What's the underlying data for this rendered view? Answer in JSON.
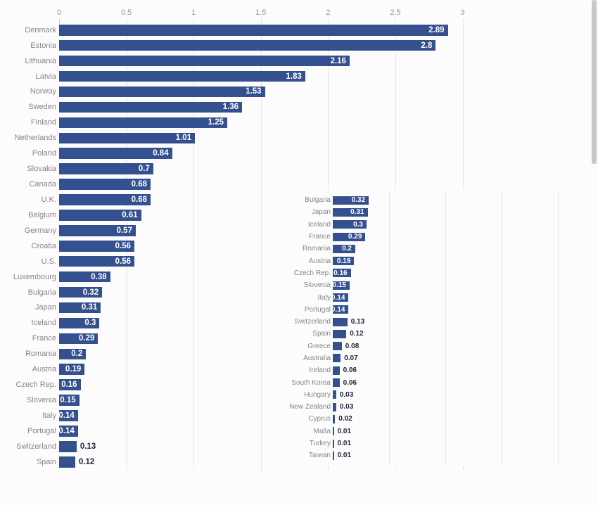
{
  "colors": {
    "background": "#fcfcfc",
    "bar": "#35508f",
    "category_label": "#85868a",
    "axis_label": "#96979b",
    "gridline": "#e4e4e6",
    "tickmark": "#c9c9cb",
    "value_inside": "#ffffff",
    "value_outside": "#23263a",
    "scrollbar": "#c7c7c9"
  },
  "scrollbar": {
    "name": "scrollbar-thumb"
  },
  "chart_data": [
    {
      "id": "main",
      "type": "bar",
      "orientation": "horizontal",
      "title": "",
      "xlabel": "",
      "ylabel": "",
      "xlim": [
        0,
        3
      ],
      "grid": true,
      "axis_position": "top",
      "tick_labels": [
        "0",
        "0.5",
        "1",
        "1.5",
        "2",
        "2.5",
        "3"
      ],
      "tick_values": [
        0,
        0.5,
        1,
        1.5,
        2,
        2.5,
        3
      ],
      "categories": [
        "Denmark",
        "Estonia",
        "Lithuania",
        "Latvia",
        "Norway",
        "Sweden",
        "Finland",
        "Netherlands",
        "Poland",
        "Slovakia",
        "Canada",
        "U.K.",
        "Belgium",
        "Germany",
        "Croatia",
        "U.S.",
        "Luxembourg",
        "Bulgaria",
        "Japan",
        "Iceland",
        "France",
        "Romania",
        "Austria",
        "Czech Rep.",
        "Slovenia",
        "Italy",
        "Portugal",
        "Switzerland",
        "Spain"
      ],
      "values": [
        2.89,
        2.8,
        2.16,
        1.83,
        1.53,
        1.36,
        1.25,
        1.01,
        0.84,
        0.7,
        0.68,
        0.68,
        0.61,
        0.57,
        0.56,
        0.56,
        0.38,
        0.32,
        0.31,
        0.3,
        0.29,
        0.2,
        0.19,
        0.16,
        0.15,
        0.14,
        0.14,
        0.13,
        0.12
      ],
      "value_labels": [
        "2.89",
        "2.8",
        "2.16",
        "1.83",
        "1.53",
        "1.36",
        "1.25",
        "1.01",
        "0.84",
        "0.7",
        "0.68",
        "0.68",
        "0.61",
        "0.57",
        "0.56",
        "0.56",
        "0.38",
        "0.32",
        "0.31",
        "0.3",
        "0.29",
        "0.2",
        "0.19",
        "0.16",
        "0.15",
        "0.14",
        "0.14",
        "0.13",
        "0.12"
      ]
    },
    {
      "id": "inset",
      "type": "bar",
      "orientation": "horizontal",
      "title": "",
      "xlabel": "",
      "ylabel": "",
      "xlim": [
        0,
        2.3
      ],
      "grid": true,
      "axis_position": "none",
      "tick_labels": [],
      "tick_values": [
        0.5,
        1,
        1.5,
        2
      ],
      "categories": [
        "Bulgaria",
        "Japan",
        "Iceland",
        "France",
        "Romania",
        "Austria",
        "Czech Rep.",
        "Slovenia",
        "Italy",
        "Portugal",
        "Switzerland",
        "Spain",
        "Greece",
        "Australia",
        "Ireland",
        "South Korea",
        "Hungary",
        "New Zealand",
        "Cyprus",
        "Malta",
        "Turkey",
        "Taiwan"
      ],
      "values": [
        0.32,
        0.31,
        0.3,
        0.29,
        0.2,
        0.19,
        0.16,
        0.15,
        0.14,
        0.14,
        0.13,
        0.12,
        0.08,
        0.07,
        0.06,
        0.06,
        0.03,
        0.03,
        0.02,
        0.01,
        0.01,
        0.01
      ],
      "value_labels": [
        "0.32",
        "0.31",
        "0.3",
        "0.29",
        "0.2",
        "0.19",
        "0.16",
        "0.15",
        "0.14",
        "0.14",
        "0.13",
        "0.12",
        "0.08",
        "0.07",
        "0.06",
        "0.06",
        "0.03",
        "0.03",
        "0.02",
        "0.01",
        "0.01",
        "0.01"
      ]
    }
  ]
}
